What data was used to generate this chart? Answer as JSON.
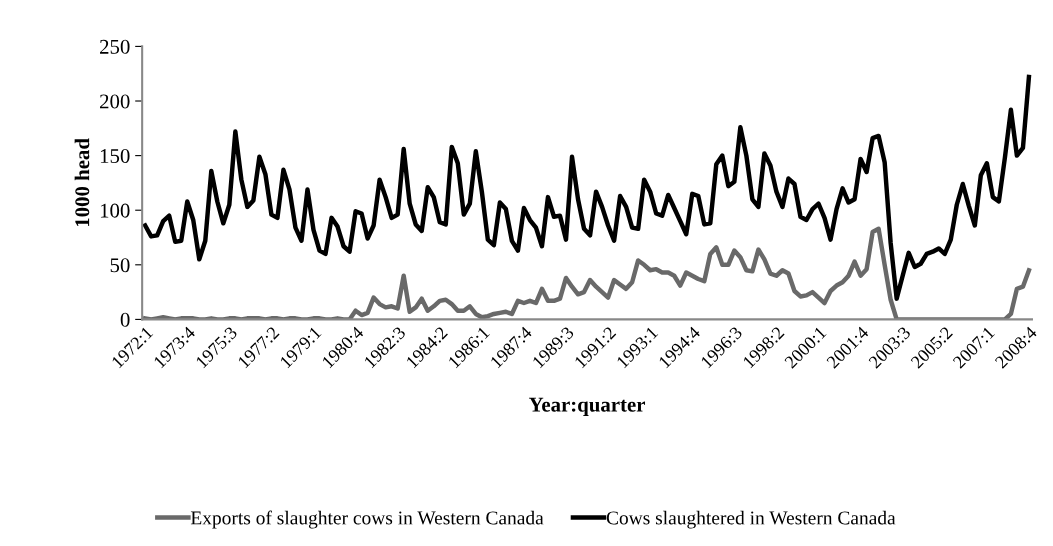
{
  "chart_data": {
    "type": "line",
    "xlabel": "Year:quarter",
    "ylabel": "1000 head",
    "categories": [
      "1972:1",
      null,
      null,
      null,
      null,
      null,
      null,
      "1973:4",
      null,
      null,
      null,
      null,
      null,
      null,
      "1975:3",
      null,
      null,
      null,
      null,
      null,
      null,
      "1977:2",
      null,
      null,
      null,
      null,
      null,
      null,
      "1979:1",
      null,
      null,
      null,
      null,
      null,
      null,
      "1980:4",
      null,
      null,
      null,
      null,
      null,
      null,
      "1982:3",
      null,
      null,
      null,
      null,
      null,
      null,
      "1984:2",
      null,
      null,
      null,
      null,
      null,
      null,
      "1986:1",
      null,
      null,
      null,
      null,
      null,
      null,
      "1987:4",
      null,
      null,
      null,
      null,
      null,
      null,
      "1989:3",
      null,
      null,
      null,
      null,
      null,
      null,
      "1991:2",
      null,
      null,
      null,
      null,
      null,
      null,
      "1993:1",
      null,
      null,
      null,
      null,
      null,
      null,
      "1994:4",
      null,
      null,
      null,
      null,
      null,
      null,
      "1996:3",
      null,
      null,
      null,
      null,
      null,
      null,
      "1998:2",
      null,
      null,
      null,
      null,
      null,
      null,
      "2000:1",
      null,
      null,
      null,
      null,
      null,
      null,
      "2001:4",
      null,
      null,
      null,
      null,
      null,
      null,
      "2003:3",
      null,
      null,
      null,
      null,
      null,
      null,
      "2005:2",
      null,
      null,
      null,
      null,
      null,
      null,
      "2007:1",
      null,
      null,
      null,
      null,
      null,
      null,
      "2008:4"
    ],
    "series": [
      {
        "name": "Exports of slaughter cows in Western Canada",
        "color": "#696969",
        "values": [
          1,
          0,
          1,
          2,
          1,
          0,
          1,
          1,
          1,
          0,
          0,
          1,
          0,
          0,
          1,
          1,
          0,
          1,
          1,
          1,
          0,
          1,
          1,
          0,
          1,
          1,
          0,
          0,
          1,
          1,
          0,
          0,
          1,
          0,
          0,
          8,
          4,
          6,
          20,
          14,
          11,
          12,
          10,
          40,
          7,
          11,
          19,
          8,
          12,
          17,
          18,
          14,
          8,
          8,
          12,
          5,
          2,
          3,
          5,
          6,
          7,
          5,
          17,
          15,
          17,
          15,
          28,
          17,
          17,
          19,
          38,
          30,
          23,
          25,
          36,
          30,
          25,
          20,
          36,
          32,
          28,
          34,
          54,
          50,
          45,
          46,
          43,
          43,
          40,
          31,
          43,
          40,
          37,
          35,
          60,
          66,
          50,
          50,
          63,
          57,
          45,
          44,
          64,
          55,
          42,
          40,
          45,
          42,
          26,
          21,
          22,
          25,
          20,
          15,
          26,
          31,
          34,
          40,
          53,
          40,
          46,
          80,
          83,
          50,
          18,
          0,
          0,
          0,
          0,
          0,
          0,
          0,
          0,
          0,
          0,
          0,
          0,
          0,
          0,
          0,
          0,
          0,
          0,
          0,
          5,
          28,
          30,
          45
        ]
      },
      {
        "name": "Cows slaughtered in Western Canada",
        "color": "#000000",
        "values": [
          86,
          76,
          77,
          90,
          95,
          71,
          72,
          108,
          91,
          55,
          72,
          136,
          108,
          88,
          105,
          172,
          128,
          103,
          109,
          149,
          133,
          96,
          93,
          137,
          119,
          84,
          72,
          119,
          82,
          63,
          60,
          93,
          85,
          67,
          62,
          99,
          97,
          74,
          86,
          128,
          112,
          93,
          96,
          156,
          106,
          87,
          81,
          121,
          112,
          89,
          87,
          158,
          143,
          96,
          106,
          154,
          117,
          73,
          68,
          107,
          101,
          72,
          63,
          102,
          91,
          84,
          67,
          112,
          94,
          95,
          73,
          149,
          110,
          83,
          77,
          117,
          103,
          86,
          72,
          113,
          103,
          84,
          83,
          128,
          117,
          97,
          95,
          114,
          102,
          90,
          78,
          115,
          113,
          87,
          88,
          142,
          150,
          122,
          126,
          176,
          150,
          110,
          103,
          152,
          141,
          117,
          103,
          129,
          124,
          94,
          91,
          101,
          106,
          93,
          73,
          101,
          120,
          107,
          110,
          147,
          135,
          166,
          168,
          144,
          70,
          19,
          40,
          61,
          48,
          51,
          60,
          62,
          65,
          60,
          73,
          105,
          124,
          104,
          86,
          132,
          143,
          112,
          108,
          148,
          192,
          150,
          157,
          222
        ]
      }
    ],
    "ylim": [
      0,
      250
    ],
    "yticks": [
      0,
      50,
      100,
      150,
      200,
      250
    ],
    "grid": false,
    "legend": "bottom",
    "marker": "none",
    "line_style": "solid"
  }
}
